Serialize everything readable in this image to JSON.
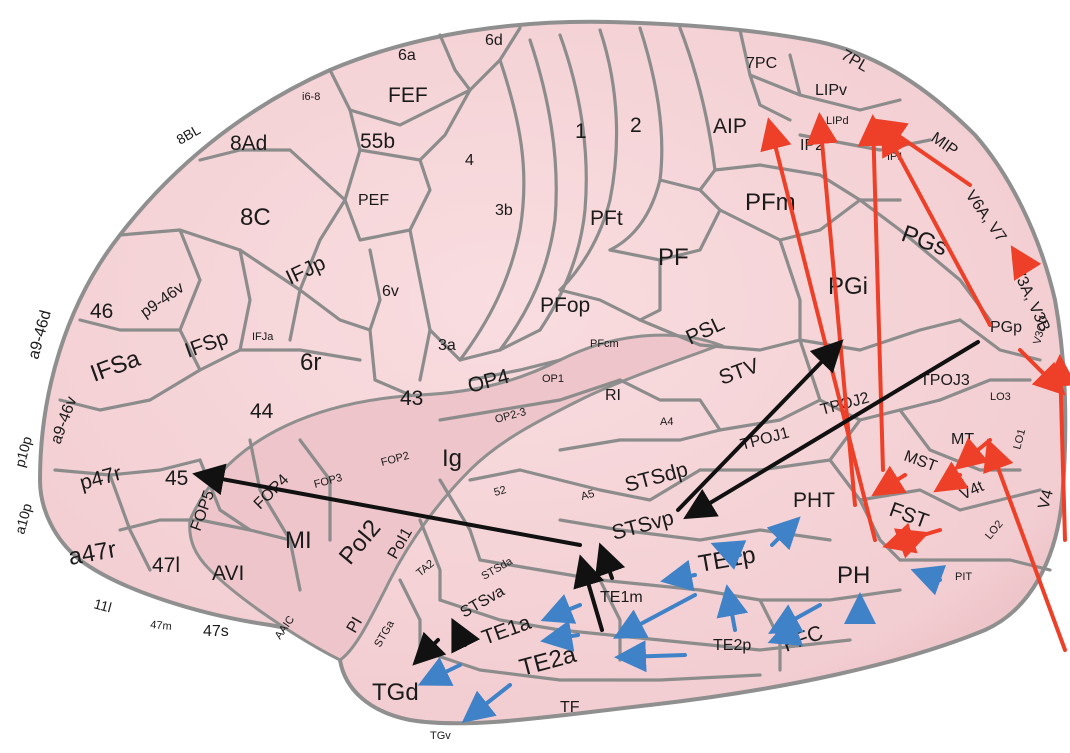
{
  "colors": {
    "cortex_fill": "#f6d3d7",
    "cortex_outline": "#8f8f8f",
    "arrow_red": "#ee4028",
    "arrow_blue": "#3f82c8",
    "arrow_black": "#111111"
  },
  "regions": {
    "a_6a": "6a",
    "a_6d": "6d",
    "a_7pc": "7PC",
    "a_7pl": "7PL",
    "a_lipv": "LIPv",
    "a_lipd": "LIPd",
    "a_fef": "FEF",
    "a_i68": "i6-8",
    "a_8bl": "8BL",
    "a_8ad": "8Ad",
    "a_55b": "55b",
    "a_4": "4",
    "a_1": "1",
    "a_2": "2",
    "a_aip": "AIP",
    "a_ip2": "IP2",
    "a_ip1": "IP1",
    "a_mip": "MIP",
    "a_v6a": "V6A, V7",
    "a_3b": "3b",
    "a_pft": "PFt",
    "a_pfm": "PFm",
    "a_8c": "8C",
    "a_pef": "PEF",
    "a_pgs": "PGs",
    "a_v3a": "V3A, V3B",
    "a_ifjp": "IFJp",
    "a_pf": "PF",
    "a_pgi": "PGi",
    "a_p946v": "p9-46v",
    "a_46": "46",
    "a_6v": "6v",
    "a_ifja": "IFJa",
    "a_ifsp": "IFSp",
    "a_pfop": "PFop",
    "a_psl": "PSL",
    "a_pgp": "PGp",
    "a_v3cd": "V3CD",
    "a_a946d": "a9-46d",
    "a_6r": "6r",
    "a_3a": "3a",
    "a_pfcm": "PFcm",
    "a_ifsa": "IFSa",
    "a_stv": "STV",
    "a_tpoj3": "TPOJ3",
    "a_op4": "OP4",
    "a_op1": "OP1",
    "a_lo3": "LO3",
    "a_a946v": "a9-46v",
    "a_43": "43",
    "a_44": "44",
    "a_ri": "RI",
    "a_tpoj2": "TPOJ2",
    "a_op23": "OP2-3",
    "a_a4": "A4",
    "a_p10p": "p10p",
    "a_mt": "MT",
    "a_lo1": "LO1",
    "a_tpoj1": "TPOJ1",
    "a_mst": "MST",
    "a_fop2": "FOP2",
    "a_ig": "Ig",
    "a_p47r": "p47r",
    "a_45": "45",
    "a_fop3": "FOP3",
    "a_fop4": "FOP4",
    "a_52": "52",
    "a_stsdp": "STSdp",
    "a_a5": "A5",
    "a_v4": "V4",
    "a_a10p": "a10p",
    "a_v4t": "V4t",
    "a_fop5": "FOP5",
    "a_pht": "PHT",
    "a_fst": "FST",
    "a_stsvp": "STSvp",
    "a_mi": "MI",
    "a_pol2": "PoI2",
    "a_lo2": "LO2",
    "a_pol1": "PoI1",
    "a_a47r": "a47r",
    "a_47l": "47l",
    "a_avi": "AVI",
    "a_te1p": "TE1p",
    "a_ta2": "TA2",
    "a_stsda": "STSda",
    "a_pit": "PIT",
    "a_ph": "PH",
    "a_te1m": "TE1m",
    "a_11l": "11l",
    "a_stsva": "STSva",
    "a_47m": "47m",
    "a_47s": "47s",
    "a_aaic": "AAIC",
    "a_pi": "PI",
    "a_te1a": "TE1a",
    "a_stga": "STGa",
    "a_te2p": "TE2p",
    "a_ffc": "FFC",
    "a_te2a": "TE2a",
    "a_tgd": "TGd",
    "a_tf": "TF",
    "a_tgv": "TGv"
  }
}
